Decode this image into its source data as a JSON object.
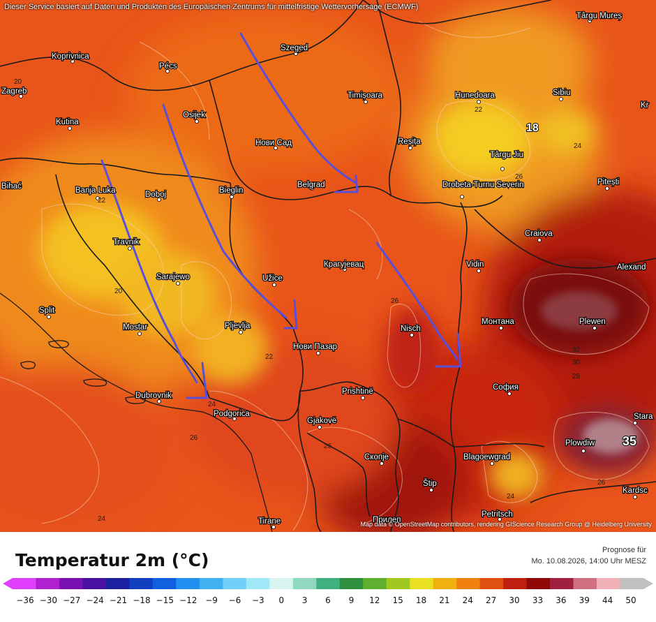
{
  "banner": "Dieser Service basiert auf Daten und Produkten des Europäischen Zentrums für mittelfristige Wettervorhersage (ECMWF)",
  "attribution": "Map data © OpenStreetMap contributors, rendering GIScience Research Group @ Heidelberg University",
  "legend": {
    "title": "Temperatur 2m (°C)",
    "forecast_label": "Prognose für",
    "forecast_time": "Mo. 10.08.2026, 14:00 Uhr MESZ",
    "ticks": [
      "−36",
      "−30",
      "−27",
      "−24",
      "−21",
      "−18",
      "−15",
      "−12",
      "−9",
      "−6",
      "−3",
      "0",
      "3",
      "6",
      "9",
      "12",
      "15",
      "18",
      "21",
      "24",
      "27",
      "30",
      "33",
      "36",
      "39",
      "44",
      "50"
    ],
    "colors": [
      "#e040fb",
      "#b020d0",
      "#7a10b0",
      "#4a10a0",
      "#1a20a0",
      "#1040c0",
      "#1060e0",
      "#2090f0",
      "#40b0f0",
      "#70d0f8",
      "#a0e8f8",
      "#d8f4f0",
      "#90d8c0",
      "#40b080",
      "#309040",
      "#60b030",
      "#a0c820",
      "#e8e020",
      "#f0b010",
      "#f08010",
      "#e05010",
      "#c02010",
      "#900808",
      "#a02040",
      "#d07080",
      "#f0b0b8",
      "#c0c0c0"
    ]
  },
  "cities": [
    {
      "name": "Koprivnica"
    },
    {
      "name": "Pécs"
    },
    {
      "name": "Szeged"
    },
    {
      "name": "Zagreb"
    },
    {
      "name": "Kutina"
    },
    {
      "name": "Osijek"
    },
    {
      "name": "Нови Сад"
    },
    {
      "name": "Timișoara"
    },
    {
      "name": "Hunedoara"
    },
    {
      "name": "Sibiu"
    },
    {
      "name": "Reșița"
    },
    {
      "name": "Târgu Jiu"
    },
    {
      "name": "Banja Luka"
    },
    {
      "name": "Doboj"
    },
    {
      "name": "Bieglin"
    },
    {
      "name": "Belgrad"
    },
    {
      "name": "Drobeta-Turnu Severin"
    },
    {
      "name": "Pitești"
    },
    {
      "name": "Travnik"
    },
    {
      "name": "Craiova"
    },
    {
      "name": "Sarajewo"
    },
    {
      "name": "Užice"
    },
    {
      "name": "Крагујевац"
    },
    {
      "name": "Vidin"
    },
    {
      "name": "Alexand"
    },
    {
      "name": "Split"
    },
    {
      "name": "Mostar"
    },
    {
      "name": "Pljevlja"
    },
    {
      "name": "Nisch"
    },
    {
      "name": "Монтана"
    },
    {
      "name": "Plewen"
    },
    {
      "name": "Нови Пазар"
    },
    {
      "name": "Dubrovnik"
    },
    {
      "name": "Prishtinë"
    },
    {
      "name": "София"
    },
    {
      "name": "Podgorica"
    },
    {
      "name": "Gjakovë"
    },
    {
      "name": "Stara"
    },
    {
      "name": "Plowdiw"
    },
    {
      "name": "Скопје"
    },
    {
      "name": "Blagoewgrad"
    },
    {
      "name": "Štip"
    },
    {
      "name": "Kardsc"
    },
    {
      "name": "Tirane"
    },
    {
      "name": "Petritsch"
    },
    {
      "name": "Прилеп"
    },
    {
      "name": "Târgu Mureș"
    },
    {
      "name": "Bihać"
    },
    {
      "name": "Kr"
    }
  ],
  "isotherm_labels": [
    "20",
    "22",
    "22",
    "18",
    "24",
    "26",
    "22",
    "20",
    "24",
    "26",
    "26",
    "24",
    "28",
    "30",
    "32",
    "26",
    "24",
    "26",
    "35"
  ]
}
